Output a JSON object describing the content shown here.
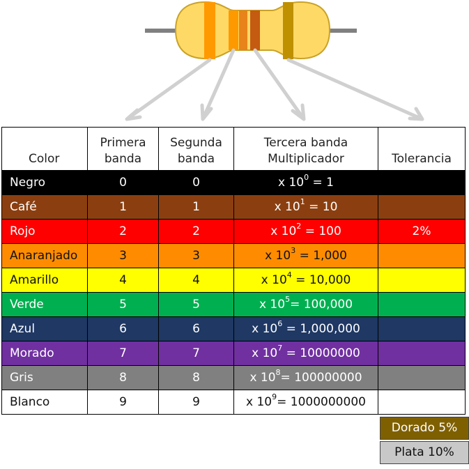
{
  "headers": {
    "color": "Color",
    "first_line1": "Primera",
    "first_line2": "banda",
    "second_line1": "Segunda",
    "second_line2": "banda",
    "third_line1": "Tercera banda",
    "third_line2": "Multiplicador",
    "tolerance": "Tolerancia"
  },
  "rows": [
    {
      "name": "Negro",
      "first": "0",
      "second": "0",
      "mult_prefix": "x 10",
      "mult_exp": "0",
      "mult_suffix": " = 1",
      "tolerance": "",
      "bg": "#000000",
      "fg": "#ffffff"
    },
    {
      "name": "Café",
      "first": "1",
      "second": "1",
      "mult_prefix": "x 10",
      "mult_exp": "1",
      "mult_suffix": " = 10",
      "tolerance": "",
      "bg": "#8B3F10",
      "fg": "#ffffff"
    },
    {
      "name": "Rojo",
      "first": "2",
      "second": "2",
      "mult_prefix": "x 10",
      "mult_exp": "2",
      "mult_suffix": " = 100",
      "tolerance": "2%",
      "bg": "#FF0000",
      "fg": "#ffffff"
    },
    {
      "name": "Anaranjado",
      "first": "3",
      "second": "3",
      "mult_prefix": "x 10",
      "mult_exp": "3",
      "mult_suffix": " = 1,000",
      "tolerance": "",
      "bg": "#FF8C00",
      "fg": "#111111"
    },
    {
      "name": "Amarillo",
      "first": "4",
      "second": "4",
      "mult_prefix": "x 10",
      "mult_exp": "4",
      "mult_suffix": " = 10,000",
      "tolerance": "",
      "bg": "#FFFF00",
      "fg": "#111111"
    },
    {
      "name": "Verde",
      "first": "5",
      "second": "5",
      "mult_prefix": "x 10",
      "mult_exp": "5",
      "mult_suffix": "= 100,000",
      "tolerance": "",
      "bg": "#00B050",
      "fg": "#ffffff"
    },
    {
      "name": "Azul",
      "first": "6",
      "second": "6",
      "mult_prefix": "x 10",
      "mult_exp": "6",
      "mult_suffix": " = 1,000,000",
      "tolerance": "",
      "bg": "#1F3864",
      "fg": "#ffffff"
    },
    {
      "name": "Morado",
      "first": "7",
      "second": "7",
      "mult_prefix": "x 10",
      "mult_exp": "7",
      "mult_suffix": " = 10000000",
      "tolerance": "",
      "bg": "#7030A0",
      "fg": "#ffffff"
    },
    {
      "name": "Gris",
      "first": "8",
      "second": "8",
      "mult_prefix": "x 10",
      "mult_exp": "8",
      "mult_suffix": "= 100000000",
      "tolerance": "",
      "bg": "#808080",
      "fg": "#ffffff"
    },
    {
      "name": "Blanco",
      "first": "9",
      "second": "9",
      "mult_prefix": "x 10",
      "mult_exp": "9",
      "mult_suffix": "= 1000000000",
      "tolerance": "",
      "bg": "#FFFFFF",
      "fg": "#111111"
    }
  ],
  "extra_tolerance": [
    {
      "label": "Dorado 5%",
      "bg": "#7F6000",
      "fg": "#ffffff"
    },
    {
      "label": "Plata 10%",
      "bg": "#C8C8C8",
      "fg": "#111111"
    }
  ],
  "resistor": {
    "body_color": "#FFD966",
    "body_stroke": "#C9A227",
    "lead_color": "#808080",
    "arrow_color": "#D0D0D0",
    "band_colors": [
      "#FF9900",
      "#FF9900",
      "#E8821A",
      "#C55A11",
      "#BF9000"
    ]
  }
}
